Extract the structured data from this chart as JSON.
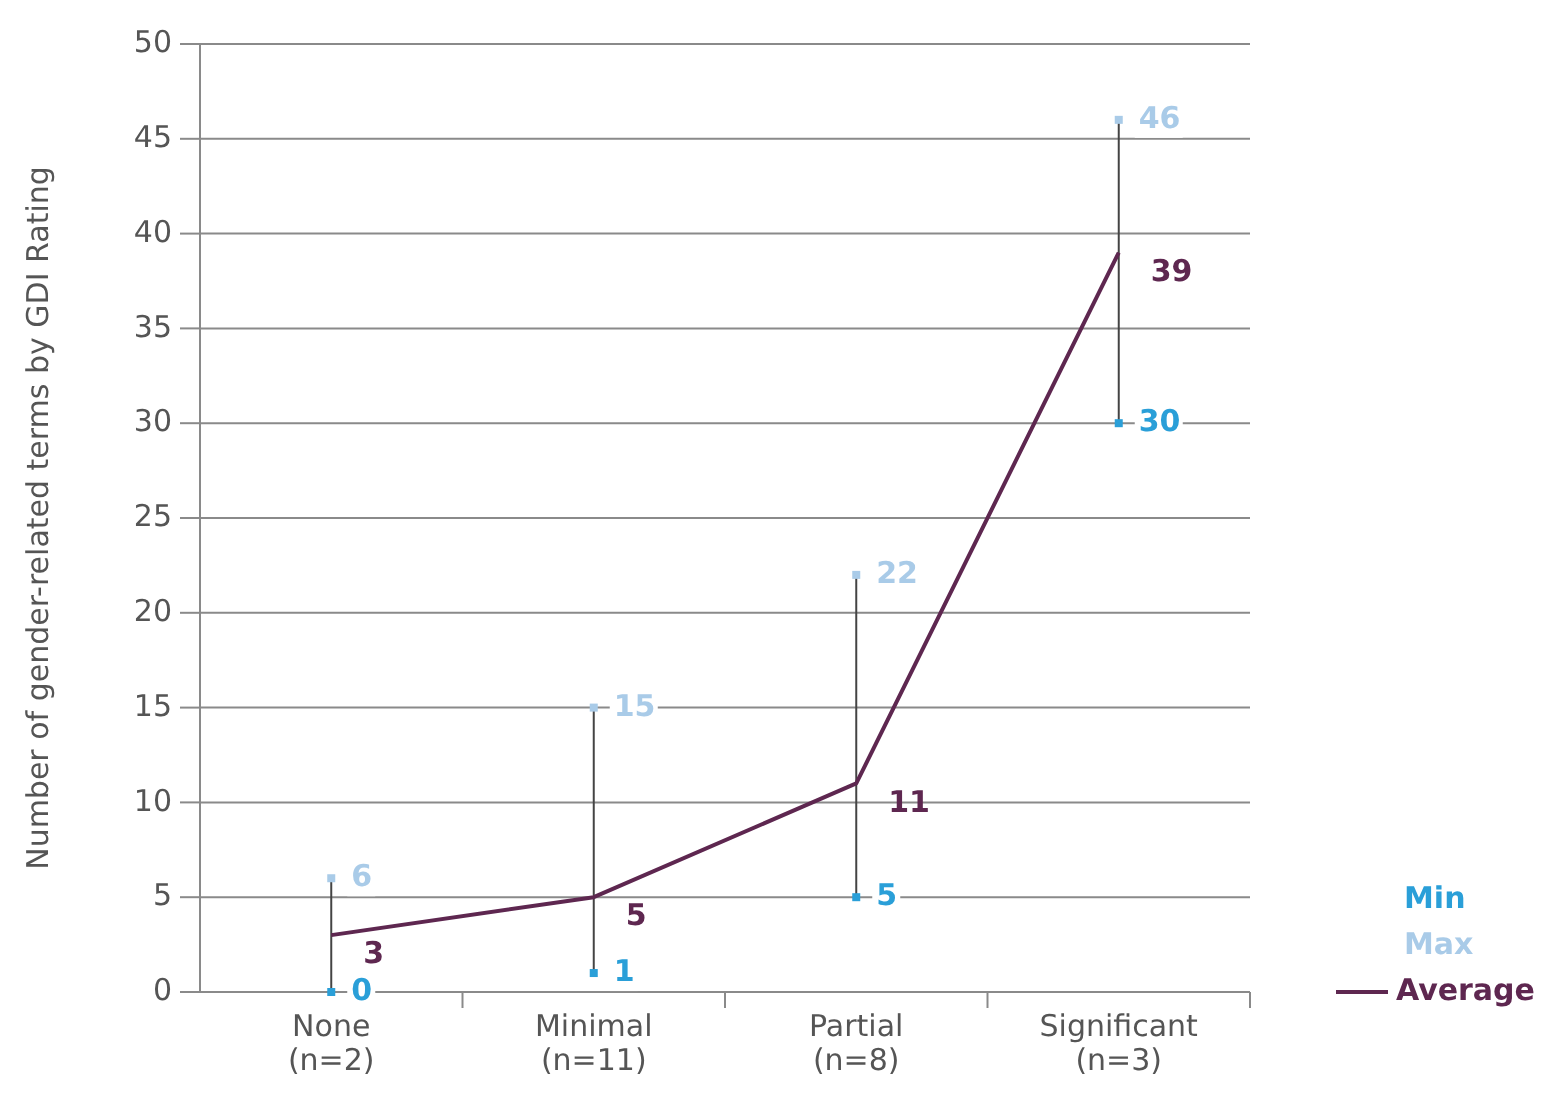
{
  "chart_data": {
    "type": "line",
    "ylabel": "Number of gender-related terms by GDI Rating",
    "categories": [
      "None\n(n=2)",
      "Minimal\n(n=11)",
      "Partial\n(n=8)",
      "Significant\n(n=3)"
    ],
    "series": [
      {
        "name": "Min",
        "type": "scatter",
        "marker": "square",
        "color": "#2a9fd8",
        "values": [
          0,
          1,
          5,
          30
        ]
      },
      {
        "name": "Max",
        "type": "scatter",
        "marker": "square",
        "color": "#a9cbe8",
        "values": [
          6,
          15,
          22,
          46
        ]
      },
      {
        "name": "Average",
        "type": "line",
        "color": "#5e2750",
        "values": [
          3,
          5,
          11,
          39
        ]
      }
    ],
    "ylim": [
      0,
      50
    ],
    "yticks": [
      0,
      5,
      10,
      15,
      20,
      25,
      30,
      35,
      40,
      45,
      50
    ],
    "grid": "y",
    "legend": "bottom right",
    "data_labels": true
  }
}
